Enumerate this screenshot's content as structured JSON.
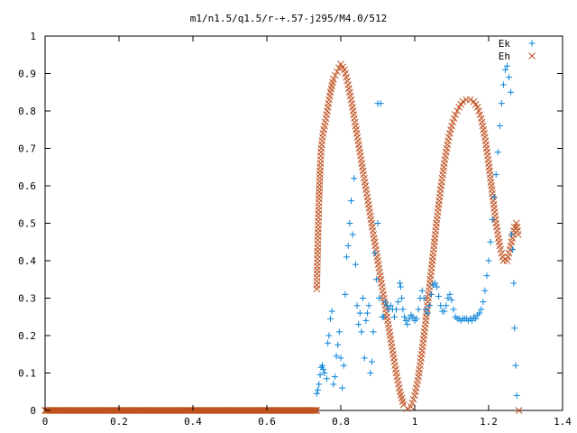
{
  "chart_data": {
    "type": "scatter",
    "title": "m1/n1.5/q1.5/r-+.57-j295/M4.0/512",
    "xlabel": "",
    "ylabel": "",
    "xlim": [
      0,
      1.4
    ],
    "ylim": [
      0,
      1
    ],
    "x_ticks": [
      "0",
      "0.2",
      "0.4",
      "0.6",
      "0.8",
      "1",
      "1.2",
      "1.4"
    ],
    "y_ticks": [
      "0",
      "0.1",
      "0.2",
      "0.3",
      "0.4",
      "0.5",
      "0.6",
      "0.7",
      "0.8",
      "0.9",
      "1"
    ],
    "grid": false,
    "legend_position": "top-right",
    "series": [
      {
        "name": "Ek",
        "marker": "+",
        "color": "#0b84d8",
        "points": [
          [
            0.735,
            0.045
          ],
          [
            0.738,
            0.055
          ],
          [
            0.741,
            0.07
          ],
          [
            0.744,
            0.095
          ],
          [
            0.747,
            0.115
          ],
          [
            0.75,
            0.12
          ],
          [
            0.753,
            0.11
          ],
          [
            0.756,
            0.1
          ],
          [
            0.762,
            0.085
          ],
          [
            0.765,
            0.18
          ],
          [
            0.768,
            0.2
          ],
          [
            0.772,
            0.245
          ],
          [
            0.776,
            0.265
          ],
          [
            0.78,
            0.07
          ],
          [
            0.784,
            0.09
          ],
          [
            0.788,
            0.145
          ],
          [
            0.792,
            0.175
          ],
          [
            0.796,
            0.21
          ],
          [
            0.8,
            0.14
          ],
          [
            0.804,
            0.06
          ],
          [
            0.808,
            0.12
          ],
          [
            0.812,
            0.31
          ],
          [
            0.816,
            0.41
          ],
          [
            0.82,
            0.44
          ],
          [
            0.824,
            0.5
          ],
          [
            0.828,
            0.56
          ],
          [
            0.832,
            0.47
          ],
          [
            0.836,
            0.62
          ],
          [
            0.84,
            0.39
          ],
          [
            0.844,
            0.28
          ],
          [
            0.848,
            0.23
          ],
          [
            0.852,
            0.26
          ],
          [
            0.856,
            0.21
          ],
          [
            0.86,
            0.3
          ],
          [
            0.864,
            0.14
          ],
          [
            0.868,
            0.24
          ],
          [
            0.872,
            0.26
          ],
          [
            0.876,
            0.28
          ],
          [
            0.88,
            0.1
          ],
          [
            0.884,
            0.13
          ],
          [
            0.888,
            0.21
          ],
          [
            0.892,
            0.42
          ],
          [
            0.896,
            0.35
          ],
          [
            0.9,
            0.5
          ],
          [
            0.904,
            0.3
          ],
          [
            0.908,
            0.82
          ],
          [
            0.912,
            0.25
          ],
          [
            0.916,
            0.25
          ],
          [
            0.92,
            0.29
          ],
          [
            0.925,
            0.28
          ],
          [
            0.93,
            0.27
          ],
          [
            0.935,
            0.28
          ],
          [
            0.94,
            0.27
          ],
          [
            0.945,
            0.25
          ],
          [
            0.95,
            0.27
          ],
          [
            0.955,
            0.29
          ],
          [
            0.96,
            0.34
          ],
          [
            0.962,
            0.33
          ],
          [
            0.965,
            0.3
          ],
          [
            0.968,
            0.27
          ],
          [
            0.972,
            0.25
          ],
          [
            0.976,
            0.24
          ],
          [
            0.98,
            0.23
          ],
          [
            0.985,
            0.245
          ],
          [
            0.99,
            0.255
          ],
          [
            0.995,
            0.25
          ],
          [
            1.0,
            0.24
          ],
          [
            1.005,
            0.245
          ],
          [
            1.01,
            0.27
          ],
          [
            1.015,
            0.3
          ],
          [
            1.02,
            0.32
          ],
          [
            1.025,
            0.3
          ],
          [
            1.03,
            0.27
          ],
          [
            1.035,
            0.26
          ],
          [
            1.04,
            0.28
          ],
          [
            1.045,
            0.31
          ],
          [
            1.05,
            0.335
          ],
          [
            1.055,
            0.34
          ],
          [
            1.06,
            0.33
          ],
          [
            1.065,
            0.305
          ],
          [
            1.07,
            0.28
          ],
          [
            1.075,
            0.265
          ],
          [
            1.08,
            0.265
          ],
          [
            1.085,
            0.28
          ],
          [
            1.09,
            0.3
          ],
          [
            1.095,
            0.31
          ],
          [
            1.1,
            0.295
          ],
          [
            1.105,
            0.27
          ],
          [
            1.11,
            0.25
          ],
          [
            1.115,
            0.245
          ],
          [
            1.12,
            0.245
          ],
          [
            1.125,
            0.24
          ],
          [
            1.13,
            0.245
          ],
          [
            1.135,
            0.245
          ],
          [
            1.14,
            0.245
          ],
          [
            1.145,
            0.24
          ],
          [
            1.15,
            0.245
          ],
          [
            1.155,
            0.24
          ],
          [
            1.16,
            0.25
          ],
          [
            1.165,
            0.245
          ],
          [
            1.17,
            0.255
          ],
          [
            1.175,
            0.26
          ],
          [
            1.18,
            0.27
          ],
          [
            1.185,
            0.29
          ],
          [
            1.19,
            0.32
          ],
          [
            1.195,
            0.36
          ],
          [
            1.2,
            0.4
          ],
          [
            1.205,
            0.45
          ],
          [
            1.21,
            0.51
          ],
          [
            1.215,
            0.57
          ],
          [
            1.22,
            0.63
          ],
          [
            1.225,
            0.69
          ],
          [
            1.23,
            0.76
          ],
          [
            1.235,
            0.82
          ],
          [
            1.24,
            0.87
          ],
          [
            1.245,
            0.91
          ],
          [
            1.25,
            0.92
          ],
          [
            1.255,
            0.89
          ],
          [
            1.26,
            0.85
          ],
          [
            1.262,
            0.47
          ],
          [
            1.265,
            0.43
          ],
          [
            1.268,
            0.34
          ],
          [
            1.27,
            0.22
          ],
          [
            1.273,
            0.12
          ],
          [
            1.276,
            0.04
          ]
        ]
      },
      {
        "name": "Eh",
        "marker": "x",
        "color": "#c0501e",
        "points_note": "",
        "curve_samples": [
          [
            0.735,
            0.325
          ],
          [
            0.738,
            0.455
          ],
          [
            0.741,
            0.565
          ],
          [
            0.744,
            0.64
          ],
          [
            0.747,
            0.7
          ],
          [
            0.752,
            0.74
          ],
          [
            0.758,
            0.77
          ],
          [
            0.765,
            0.81
          ],
          [
            0.772,
            0.85
          ],
          [
            0.78,
            0.885
          ],
          [
            0.79,
            0.905
          ],
          [
            0.8,
            0.925
          ],
          [
            0.81,
            0.91
          ],
          [
            0.82,
            0.87
          ],
          [
            0.83,
            0.82
          ],
          [
            0.84,
            0.76
          ],
          [
            0.85,
            0.7
          ],
          [
            0.86,
            0.64
          ],
          [
            0.87,
            0.58
          ],
          [
            0.88,
            0.52
          ],
          [
            0.89,
            0.46
          ],
          [
            0.9,
            0.4
          ],
          [
            0.91,
            0.34
          ],
          [
            0.92,
            0.28
          ],
          [
            0.93,
            0.22
          ],
          [
            0.94,
            0.16
          ],
          [
            0.95,
            0.1
          ],
          [
            0.96,
            0.05
          ],
          [
            0.97,
            0.015
          ],
          [
            0.98,
            0.005
          ],
          [
            0.99,
            0.01
          ],
          [
            1.0,
            0.04
          ],
          [
            1.01,
            0.09
          ],
          [
            1.02,
            0.16
          ],
          [
            1.03,
            0.24
          ],
          [
            1.04,
            0.33
          ],
          [
            1.05,
            0.42
          ],
          [
            1.06,
            0.51
          ],
          [
            1.07,
            0.59
          ],
          [
            1.08,
            0.66
          ],
          [
            1.09,
            0.72
          ],
          [
            1.1,
            0.76
          ],
          [
            1.11,
            0.79
          ],
          [
            1.12,
            0.81
          ],
          [
            1.13,
            0.825
          ],
          [
            1.14,
            0.83
          ],
          [
            1.15,
            0.83
          ],
          [
            1.16,
            0.825
          ],
          [
            1.17,
            0.81
          ],
          [
            1.18,
            0.78
          ],
          [
            1.19,
            0.73
          ],
          [
            1.2,
            0.66
          ],
          [
            1.21,
            0.58
          ],
          [
            1.22,
            0.5
          ],
          [
            1.23,
            0.44
          ],
          [
            1.24,
            0.4
          ],
          [
            1.25,
            0.4
          ],
          [
            1.26,
            0.44
          ],
          [
            1.27,
            0.49
          ],
          [
            1.275,
            0.5
          ],
          [
            1.28,
            0.47
          ]
        ],
        "baseline": {
          "y": 0,
          "x_from": 0,
          "x_to": 0.735
        }
      }
    ]
  }
}
